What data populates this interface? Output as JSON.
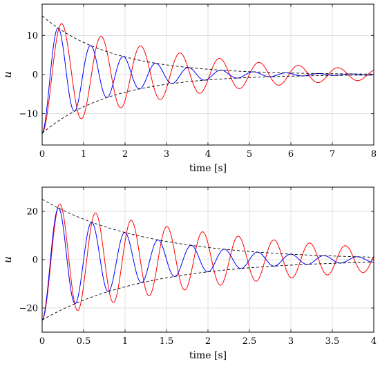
{
  "chart_data": [
    {
      "type": "line",
      "xlabel": "time [s]",
      "ylabel": "u",
      "xlim": [
        0,
        8
      ],
      "ylim": [
        -18,
        18
      ],
      "xticks": [
        0,
        1,
        2,
        3,
        4,
        5,
        6,
        7,
        8
      ],
      "yticks": [
        -10,
        0,
        10
      ],
      "grid": true,
      "series": [
        {
          "color": "#ff0000",
          "style": "solid",
          "formula": "-15*exp(-0.3*t)*cos(6.6*t)",
          "amplitude": 15,
          "decay": 0.3,
          "omega": 6.6
        },
        {
          "color": "#0000ff",
          "style": "solid",
          "formula": "-15*exp(-0.6*t)*cos(8.0*t)",
          "amplitude": 15,
          "decay": 0.6,
          "omega": 8.0
        },
        {
          "color": "#000000",
          "style": "dashed",
          "formula": "15*exp(-0.6*t)",
          "amplitude": 15,
          "decay": 0.6
        },
        {
          "color": "#000000",
          "style": "dashed",
          "formula": "-15*exp(-0.6*t)",
          "amplitude": -15,
          "decay": 0.6
        }
      ]
    },
    {
      "type": "line",
      "xlabel": "time [s]",
      "ylabel": "u",
      "xlim": [
        0,
        4
      ],
      "ylim": [
        -30,
        30
      ],
      "xticks": [
        0,
        0.5,
        1,
        1.5,
        2,
        2.5,
        3,
        3.5,
        4
      ],
      "yticks": [
        -20,
        0,
        20
      ],
      "grid": true,
      "series": [
        {
          "color": "#ff0000",
          "style": "solid",
          "formula": "-25*exp(-0.4*t)*cos(14.6*t)",
          "amplitude": 25,
          "decay": 0.4,
          "omega": 14.6
        },
        {
          "color": "#0000ff",
          "style": "solid",
          "formula": "-25*exp(-0.8*t)*cos(15.7*t)",
          "amplitude": 25,
          "decay": 0.8,
          "omega": 15.7
        },
        {
          "color": "#000000",
          "style": "dashed",
          "formula": "25*exp(-0.8*t)",
          "amplitude": 25,
          "decay": 0.8
        },
        {
          "color": "#000000",
          "style": "dashed",
          "formula": "-25*exp(-0.8*t)",
          "amplitude": -25,
          "decay": 0.8
        }
      ]
    }
  ]
}
